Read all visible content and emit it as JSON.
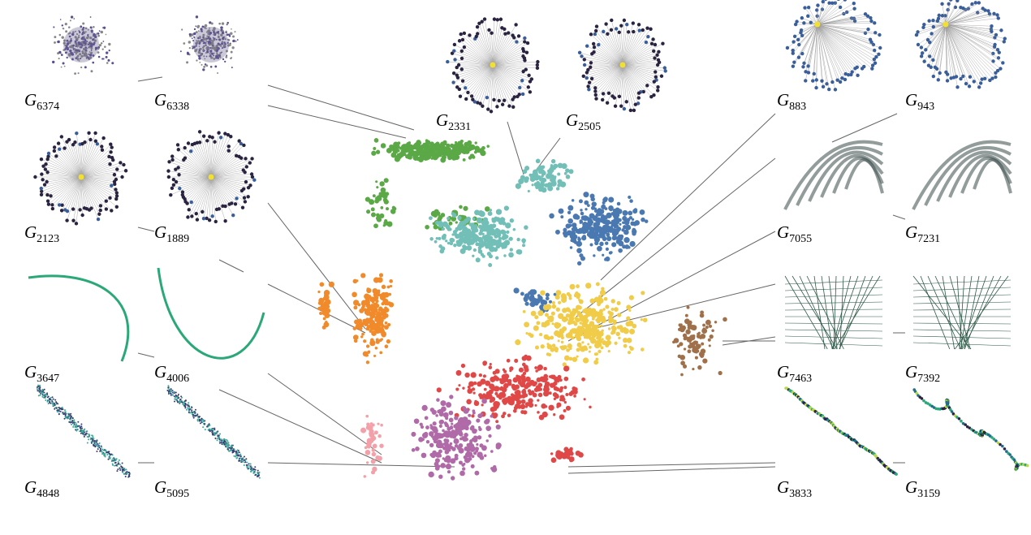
{
  "labels": [
    {
      "letter": "G",
      "index": "6374"
    },
    {
      "letter": "G",
      "index": "6338"
    },
    {
      "letter": "G",
      "index": "2123"
    },
    {
      "letter": "G",
      "index": "1889"
    },
    {
      "letter": "G",
      "index": "3647"
    },
    {
      "letter": "G",
      "index": "4006"
    },
    {
      "letter": "G",
      "index": "4848"
    },
    {
      "letter": "G",
      "index": "5095"
    },
    {
      "letter": "G",
      "index": "2331"
    },
    {
      "letter": "G",
      "index": "2505"
    },
    {
      "letter": "G",
      "index": "883"
    },
    {
      "letter": "G",
      "index": "943"
    },
    {
      "letter": "G",
      "index": "7055"
    },
    {
      "letter": "G",
      "index": "7231"
    },
    {
      "letter": "G",
      "index": "7463"
    },
    {
      "letter": "G",
      "index": "7392"
    },
    {
      "letter": "G",
      "index": "3833"
    },
    {
      "letter": "G",
      "index": "3159"
    }
  ]
}
